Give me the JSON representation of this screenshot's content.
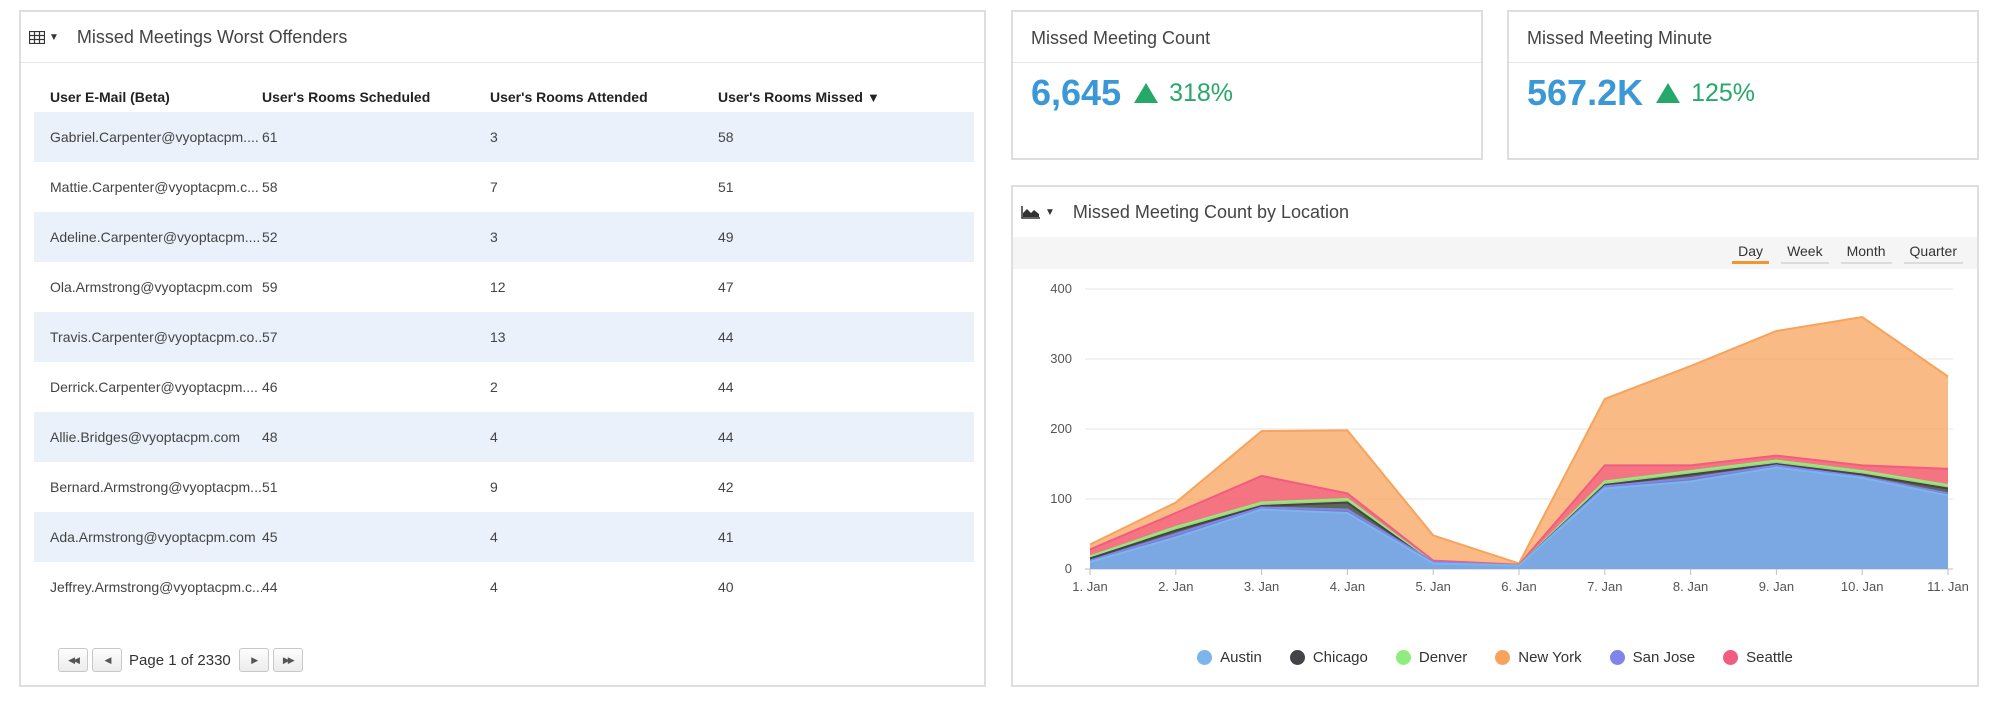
{
  "table_panel": {
    "title": "Missed Meetings Worst Offenders",
    "columns": [
      "User E-Mail (Beta)",
      "User's Rooms Scheduled",
      "User's Rooms Attended",
      "User's Rooms Missed"
    ],
    "rows": [
      [
        "Gabriel.Carpenter@vyoptacpm....",
        "61",
        "3",
        "58"
      ],
      [
        "Mattie.Carpenter@vyoptacpm.c...",
        "58",
        "7",
        "51"
      ],
      [
        "Adeline.Carpenter@vyoptacpm....",
        "52",
        "3",
        "49"
      ],
      [
        "Ola.Armstrong@vyoptacpm.com",
        "59",
        "12",
        "47"
      ],
      [
        "Travis.Carpenter@vyoptacpm.co...",
        "57",
        "13",
        "44"
      ],
      [
        "Derrick.Carpenter@vyoptacpm....",
        "46",
        "2",
        "44"
      ],
      [
        "Allie.Bridges@vyoptacpm.com",
        "48",
        "4",
        "44"
      ],
      [
        "Bernard.Armstrong@vyoptacpm...",
        "51",
        "9",
        "42"
      ],
      [
        "Ada.Armstrong@vyoptacpm.com",
        "45",
        "4",
        "41"
      ],
      [
        "Jeffrey.Armstrong@vyoptacpm.c...",
        "44",
        "4",
        "40"
      ]
    ],
    "pager_label": "Page 1 of 2330"
  },
  "kpi_count": {
    "title": "Missed Meeting Count",
    "value": "6,645",
    "change": "318%",
    "trend": "up"
  },
  "kpi_minute": {
    "title": "Missed Meeting Minute",
    "value": "567.2K",
    "change": "125%",
    "trend": "up"
  },
  "chart_panel": {
    "title": "Missed Meeting Count by Location",
    "ranges": [
      "Day",
      "Week",
      "Month",
      "Quarter"
    ],
    "active_range": "Day"
  },
  "colors": {
    "accent": "#3b98d6",
    "positive": "#27a86b",
    "active_tab": "#f0962f",
    "row_alt": "#eaf1fa"
  },
  "chart_data": {
    "type": "area",
    "stacked": false,
    "x": [
      "1. Jan",
      "2. Jan",
      "3. Jan",
      "4. Jan",
      "5. Jan",
      "6. Jan",
      "7. Jan",
      "8. Jan",
      "9. Jan",
      "10. Jan",
      "11. Jan"
    ],
    "y_ticks": [
      0,
      100,
      200,
      300,
      400
    ],
    "ylim": [
      0,
      400
    ],
    "grid": true,
    "legend_position": "bottom",
    "series": [
      {
        "name": "Austin",
        "color": "#7cb5ec",
        "values": [
          10,
          45,
          85,
          80,
          8,
          5,
          115,
          125,
          145,
          130,
          105
        ]
      },
      {
        "name": "Chicago",
        "color": "#434348",
        "values": [
          15,
          55,
          90,
          95,
          8,
          5,
          120,
          135,
          150,
          135,
          115
        ]
      },
      {
        "name": "Denver",
        "color": "#90ed7d",
        "values": [
          18,
          60,
          95,
          100,
          9,
          5,
          125,
          140,
          155,
          140,
          120
        ]
      },
      {
        "name": "New York",
        "color": "#f7a35c",
        "values": [
          35,
          95,
          197,
          198,
          48,
          8,
          243,
          290,
          340,
          360,
          275
        ]
      },
      {
        "name": "San Jose",
        "color": "#8085e9",
        "values": [
          12,
          50,
          88,
          85,
          10,
          5,
          118,
          130,
          148,
          132,
          108
        ]
      },
      {
        "name": "Seattle",
        "color": "#f15c80",
        "values": [
          28,
          80,
          133,
          108,
          12,
          6,
          148,
          148,
          162,
          148,
          143
        ]
      }
    ]
  }
}
